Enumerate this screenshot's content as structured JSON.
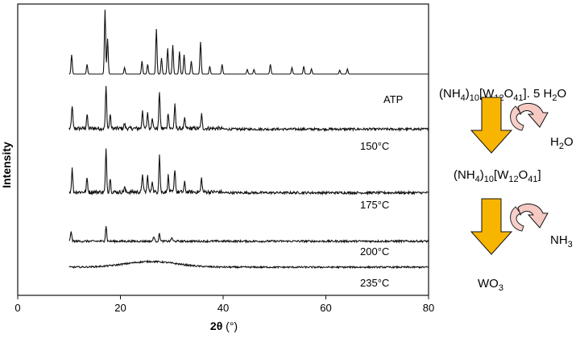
{
  "chart_data": {
    "type": "line",
    "xlabel_main": "2θ",
    "xlabel_unit": " (°)",
    "ylabel": "Intensity",
    "xlim": [
      0,
      80
    ],
    "x_ticks": [
      0,
      20,
      40,
      60,
      80
    ],
    "grid": false,
    "legend": "none",
    "series": [
      {
        "label": "ATP",
        "peaks": [
          [
            10.5,
            0.3
          ],
          [
            13.5,
            0.15
          ],
          [
            17.0,
            1.0
          ],
          [
            17.5,
            0.55
          ],
          [
            20.8,
            0.1
          ],
          [
            24.2,
            0.2
          ],
          [
            25.3,
            0.15
          ],
          [
            27.0,
            0.7
          ],
          [
            28.0,
            0.25
          ],
          [
            29.2,
            0.4
          ],
          [
            30.2,
            0.45
          ],
          [
            31.5,
            0.35
          ],
          [
            32.4,
            0.3
          ],
          [
            33.8,
            0.2
          ],
          [
            35.6,
            0.5
          ],
          [
            37.4,
            0.12
          ],
          [
            39.8,
            0.15
          ],
          [
            44.7,
            0.07
          ],
          [
            46.0,
            0.07
          ],
          [
            49.2,
            0.15
          ],
          [
            53.4,
            0.1
          ],
          [
            55.7,
            0.12
          ],
          [
            57.2,
            0.08
          ],
          [
            62.7,
            0.06
          ],
          [
            64.2,
            0.08
          ]
        ]
      },
      {
        "label": "150°C",
        "peaks": [
          [
            10.6,
            0.5
          ],
          [
            13.5,
            0.3
          ],
          [
            17.2,
            0.9
          ],
          [
            18.0,
            0.3
          ],
          [
            20.8,
            0.1
          ],
          [
            24.3,
            0.4
          ],
          [
            25.3,
            0.35
          ],
          [
            26.2,
            0.25
          ],
          [
            27.6,
            0.8
          ],
          [
            29.3,
            0.35
          ],
          [
            30.6,
            0.5
          ],
          [
            32.5,
            0.2
          ],
          [
            35.8,
            0.3
          ]
        ]
      },
      {
        "label": "175°C",
        "peaks": [
          [
            10.6,
            0.5
          ],
          [
            13.5,
            0.3
          ],
          [
            17.2,
            0.9
          ],
          [
            18.0,
            0.3
          ],
          [
            20.8,
            0.1
          ],
          [
            24.3,
            0.4
          ],
          [
            25.3,
            0.35
          ],
          [
            26.2,
            0.25
          ],
          [
            27.6,
            0.8
          ],
          [
            29.3,
            0.35
          ],
          [
            30.6,
            0.5
          ],
          [
            32.5,
            0.2
          ],
          [
            35.8,
            0.3
          ]
        ]
      },
      {
        "label": "200°C",
        "peaks": [
          [
            10.4,
            0.4
          ],
          [
            17.2,
            0.6
          ],
          [
            26.5,
            0.2
          ],
          [
            27.6,
            0.3
          ],
          [
            30.0,
            0.15
          ]
        ]
      },
      {
        "label": "235°C",
        "peaks": []
      }
    ]
  },
  "scheme": {
    "top_prefix": "(NH",
    "top_sub1": "4",
    "top_mid1": ")",
    "top_sub2": "10",
    "top_mid2": "[W",
    "top_sub3": "12",
    "top_mid3": "O",
    "top_sub4": "41",
    "top_suffix": "]. 5 H",
    "top_sub5": "2",
    "top_end": "O",
    "loss1_prefix": "H",
    "loss1_sub": "2",
    "loss1_suffix": "O",
    "mid_prefix": "(NH",
    "mid_sub1": "4",
    "mid_mid1": ")",
    "mid_sub2": "10",
    "mid_mid2": "[W",
    "mid_sub3": "12",
    "mid_mid3": "O",
    "mid_sub4": "41",
    "mid_end": "]",
    "loss2_prefix": "NH",
    "loss2_sub": "3",
    "bottom_prefix": "WO",
    "bottom_sub": "3",
    "arrow_color": "#F7B500",
    "curve_arrow_color": "#F7C9C3"
  }
}
